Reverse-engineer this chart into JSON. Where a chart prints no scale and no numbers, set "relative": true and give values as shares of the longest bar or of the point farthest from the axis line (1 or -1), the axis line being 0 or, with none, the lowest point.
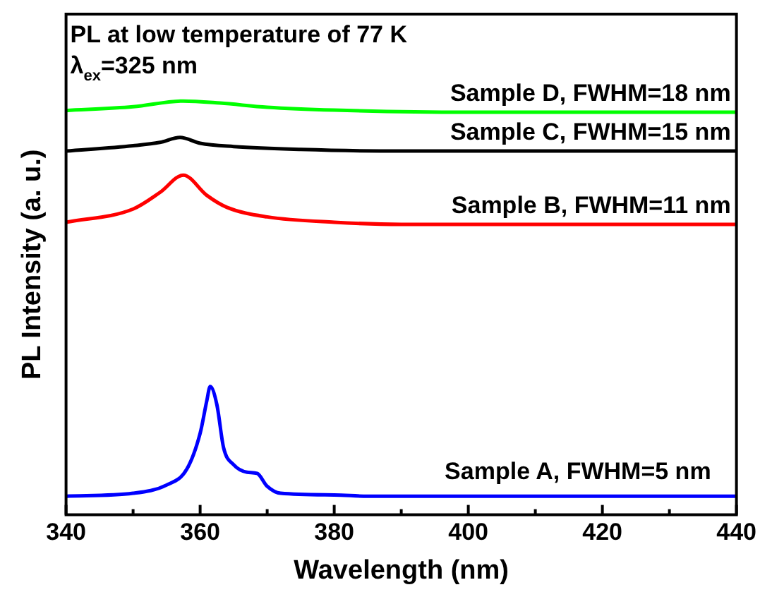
{
  "chart_data": {
    "type": "line",
    "relative": true,
    "xlabel": "Wavelength (nm)",
    "ylabel": "PL Intensity (a. u.)",
    "xlim": [
      340,
      440
    ],
    "xticks": [
      340,
      {
        "value": 350,
        "label": null
      },
      360,
      {
        "value": 370,
        "label": null
      },
      380,
      {
        "value": 390,
        "label": null
      },
      400,
      {
        "value": 410,
        "label": null
      },
      420,
      {
        "value": 430,
        "label": null
      },
      440
    ],
    "grid": false,
    "legend": false,
    "marker": "none",
    "line_style": "solid",
    "annotations": [
      "PL at low temperature of 77 K",
      "λ$_{ex}$=325 nm"
    ],
    "series": [
      {
        "name": "Sample A, FWHM=5 nm",
        "color": "#0000ff",
        "x": [
          340,
          350,
          355,
          358,
          360,
          361,
          361.5,
          362.5,
          363.5,
          365,
          367,
          368.5,
          370,
          372,
          380,
          385,
          440
        ],
        "values": [
          0.045,
          0.052,
          0.072,
          0.11,
          0.197,
          0.276,
          0.31,
          0.266,
          0.162,
          0.121,
          0.103,
          0.1,
          0.069,
          0.052,
          0.048,
          0.045,
          0.045
        ]
      },
      {
        "name": "Sample B, FWHM=11 nm",
        "color": "#ff0000",
        "x": [
          340,
          350,
          354,
          357.5,
          361,
          364,
          370,
          380,
          390,
          440
        ],
        "values": [
          0.707,
          0.739,
          0.779,
          0.821,
          0.772,
          0.743,
          0.72,
          0.707,
          0.702,
          0.702
        ]
      },
      {
        "name": "Sample C, FWHM=15 nm",
        "color": "#000000",
        "x": [
          340,
          350,
          354,
          357,
          360,
          365,
          375,
          390,
          440
        ],
        "values": [
          0.879,
          0.892,
          0.9,
          0.912,
          0.898,
          0.89,
          0.883,
          0.879,
          0.879
        ]
      },
      {
        "name": "Sample D, FWHM=18 nm",
        "color": "#00ff00",
        "x": [
          340,
          350,
          357.5,
          363,
          370,
          380,
          400,
          440
        ],
        "values": [
          0.977,
          0.986,
          1.0,
          0.995,
          0.985,
          0.978,
          0.973,
          0.973
        ]
      }
    ]
  }
}
